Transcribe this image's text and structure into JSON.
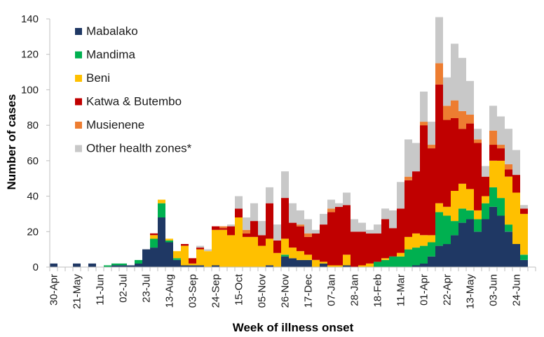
{
  "chart_data": {
    "type": "bar",
    "stacked": true,
    "title": "",
    "xlabel": "Week of illness onset",
    "ylabel": "Number of cases",
    "ylim": [
      0,
      140
    ],
    "yticks": [
      0,
      20,
      40,
      60,
      80,
      100,
      120,
      140
    ],
    "grid": false,
    "legend_position": "top-left",
    "x_tick_labels": [
      "30-Apr",
      "21-May",
      "11-Jun",
      "02-Jul",
      "23-Jul",
      "13-Aug",
      "03-Sep",
      "24-Sep",
      "15-Oct",
      "05-Nov",
      "26-Nov",
      "17-Dec",
      "07-Jan",
      "28-Jan",
      "18-Feb",
      "11-Mar",
      "01-Apr",
      "22-Apr",
      "13-May",
      "03-Jun",
      "24-Jun"
    ],
    "x_tick_label_every_n_weeks": 3,
    "n_weeks_axis": 63,
    "series": [
      {
        "name": "Mabalako",
        "color": "#1F3864",
        "values": [
          2,
          0,
          0,
          2,
          0,
          2,
          0,
          0,
          1,
          1,
          1,
          2,
          10,
          11,
          28,
          14,
          4,
          1,
          1,
          1,
          0,
          1,
          0,
          0,
          0,
          0,
          0,
          0,
          1,
          0,
          6,
          5,
          4,
          4,
          0,
          2,
          0,
          0,
          1,
          0,
          0,
          0,
          0,
          0,
          0,
          0,
          0,
          1,
          2,
          6,
          12,
          13,
          18,
          25,
          27,
          20,
          27,
          34,
          29,
          20,
          13,
          4
        ]
      },
      {
        "name": "Mandima",
        "color": "#00B050",
        "values": [
          0,
          0,
          0,
          0,
          0,
          0,
          0,
          1,
          1,
          1,
          0,
          2,
          0,
          5,
          8,
          1,
          1,
          0,
          0,
          0,
          0,
          0,
          0,
          0,
          0,
          0,
          0,
          0,
          0,
          0,
          1,
          0,
          0,
          0,
          0,
          0,
          0,
          0,
          0,
          0,
          0,
          0,
          3,
          4,
          6,
          6,
          10,
          10,
          10,
          8,
          19,
          16,
          8,
          8,
          5,
          7,
          9,
          11,
          10,
          4,
          0,
          3
        ]
      },
      {
        "name": "Beni",
        "color": "#FFC000",
        "values": [
          0,
          0,
          0,
          0,
          0,
          0,
          0,
          0,
          0,
          0,
          0,
          0,
          0,
          2,
          2,
          1,
          4,
          11,
          1,
          9,
          9,
          20,
          21,
          18,
          28,
          17,
          17,
          12,
          15,
          8,
          9,
          6,
          5,
          3,
          4,
          1,
          1,
          1,
          6,
          0,
          1,
          2,
          0,
          1,
          0,
          2,
          7,
          8,
          6,
          4,
          5,
          5,
          17,
          14,
          12,
          5,
          4,
          15,
          21,
          27,
          29,
          23
        ]
      },
      {
        "name": "Katwa & Butembo",
        "color": "#C00000",
        "values": [
          0,
          0,
          0,
          0,
          0,
          0,
          0,
          0,
          0,
          0,
          0,
          0,
          0,
          1,
          0,
          0,
          0,
          1,
          3,
          1,
          0,
          2,
          1,
          5,
          5,
          2,
          9,
          6,
          20,
          7,
          23,
          14,
          14,
          10,
          15,
          21,
          30,
          33,
          28,
          20,
          19,
          17,
          16,
          22,
          16,
          25,
          32,
          35,
          62,
          49,
          67,
          49,
          41,
          31,
          37,
          38,
          11,
          9,
          7,
          4,
          10,
          3
        ]
      },
      {
        "name": "Musienene",
        "color": "#ED7D31",
        "values": [
          0,
          0,
          0,
          0,
          0,
          0,
          0,
          0,
          0,
          0,
          0,
          0,
          0,
          0,
          0,
          0,
          0,
          0,
          0,
          0,
          0,
          0,
          1,
          0,
          0,
          2,
          0,
          0,
          0,
          0,
          0,
          0,
          1,
          2,
          0,
          0,
          2,
          0,
          0,
          0,
          0,
          0,
          0,
          0,
          0,
          0,
          2,
          0,
          2,
          2,
          12,
          8,
          10,
          10,
          5,
          2,
          0,
          8,
          2,
          3,
          0,
          0
        ]
      },
      {
        "name": "Other health zones*",
        "color": "#C8C8C8",
        "values": [
          0,
          0,
          0,
          0,
          0,
          0,
          0,
          0,
          0,
          0,
          0,
          0,
          0,
          0,
          0,
          0,
          0,
          0,
          0,
          1,
          1,
          0,
          0,
          1,
          7,
          7,
          10,
          8,
          9,
          9,
          15,
          11,
          8,
          8,
          2,
          6,
          5,
          2,
          7,
          7,
          5,
          2,
          5,
          6,
          10,
          15,
          21,
          16,
          17,
          13,
          26,
          16,
          32,
          30,
          19,
          6,
          6,
          14,
          16,
          20,
          14,
          2
        ]
      }
    ]
  }
}
